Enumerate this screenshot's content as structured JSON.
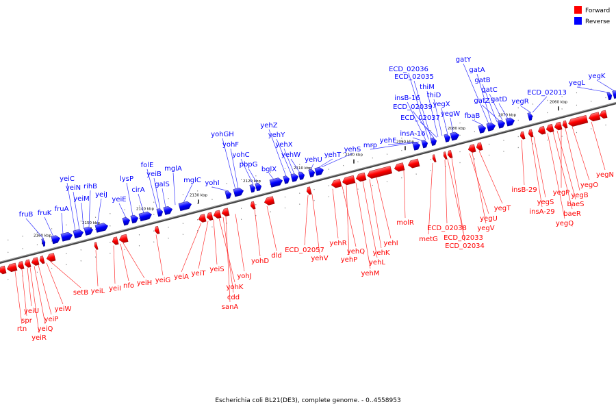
{
  "caption": "Escherichia coli BL21(DE3), complete genome. - 0..4558953",
  "legend": [
    {
      "label": "Forward",
      "color": "#ff0000"
    },
    {
      "label": "Reverse",
      "color": "#0000ff"
    }
  ],
  "colors": {
    "forward": "#ff0000",
    "reverse": "#0000ff",
    "axis": "#777777"
  },
  "ticks": [
    "2160 kbp",
    "2150 kbp",
    "2140 kbp",
    "2130 kbp",
    "2120 kbp",
    "2110 kbp",
    "2100 kbp",
    "2090 kbp",
    "2080 kbp",
    "2070 kbp",
    "2060 kbp"
  ],
  "genes_reverse": [
    "fruB",
    "fruK",
    "fruA",
    "yeiC",
    "yeiN",
    "yeiM",
    "rihB",
    "yeiJ",
    "yeiE",
    "lysP",
    "cirA",
    "folE",
    "yeiB",
    "galS",
    "mglA",
    "mglC",
    "yohI",
    "yohGH",
    "yohF",
    "yohC",
    "pbpG",
    "bglX",
    "yehZ",
    "yehY",
    "yehX",
    "yehW",
    "yehU",
    "yehT",
    "yehS",
    "mrp",
    "yehE",
    "insA-16",
    "insB-16",
    "ECD_02036",
    "ECD_02035",
    "ECD_02039",
    "ECD_02037",
    "thiM",
    "thiD",
    "yegX",
    "yegW",
    "fbaB",
    "gatY",
    "gatA",
    "gatB",
    "gatZ",
    "gatC",
    "gatD",
    "yegR",
    "ECD_02013",
    "yegL",
    "yegK"
  ],
  "genes_forward": [
    "rtn",
    "spr",
    "yeiU",
    "yeiQ",
    "yeiR",
    "yeiP",
    "yeiW",
    "setB",
    "yeiL",
    "yeiI",
    "nfo",
    "yeiH",
    "yeiG",
    "yeiA",
    "yeiT",
    "yeiS",
    "yohK",
    "cdd",
    "sanA",
    "yohJ",
    "yohD",
    "dld",
    "ECD_02057",
    "yehV",
    "yehR",
    "yehQ",
    "yehP",
    "yehM",
    "yehL",
    "yehK",
    "yehI",
    "molR",
    "metG",
    "ECD_02038",
    "ECD_02033",
    "ECD_02034",
    "yegU",
    "yegV",
    "yegT",
    "insB-29",
    "insA-29",
    "yegS",
    "yegQ",
    "baeR",
    "baeS",
    "yegP",
    "yegB",
    "yegO",
    "yegN"
  ]
}
